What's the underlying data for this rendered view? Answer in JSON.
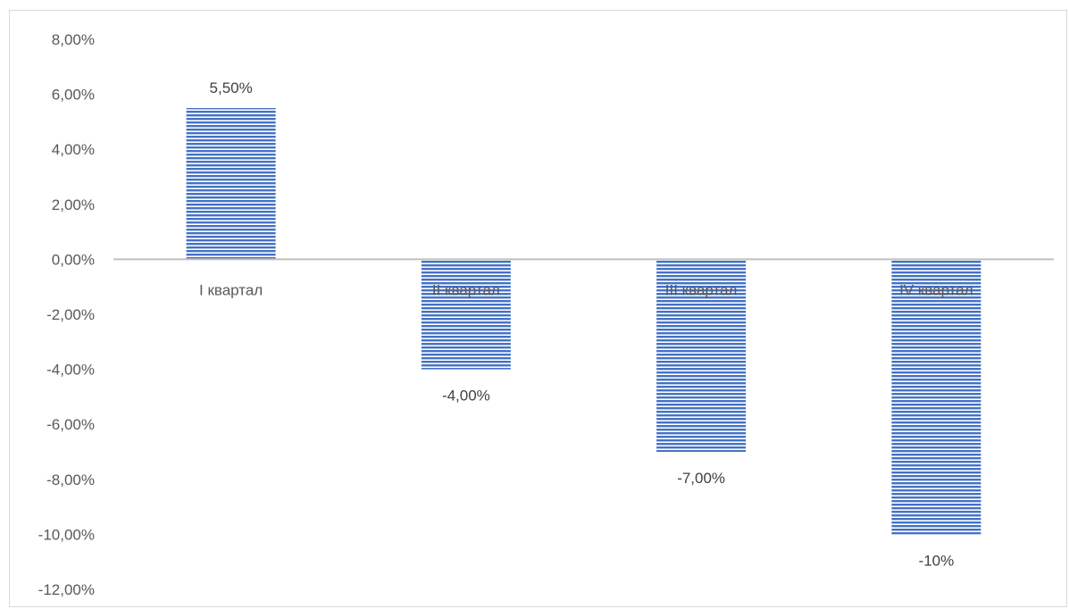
{
  "chart_data": {
    "type": "bar",
    "categories": [
      "I квартал",
      "II квартал",
      "III квартал",
      "IV квартал"
    ],
    "values": [
      5.5,
      -4.0,
      -7.0,
      -10.0
    ],
    "data_labels": [
      "5,50%",
      "-4,00%",
      "-7,00%",
      "-10%"
    ],
    "y_tick_labels": [
      "8,00%",
      "6,00%",
      "4,00%",
      "2,00%",
      "0,00%",
      "-2,00%",
      "-4,00%",
      "-6,00%",
      "-8,00%",
      "-10,00%",
      "-12,00%"
    ],
    "ylim": [
      -12,
      8
    ],
    "title": "",
    "xlabel": "",
    "ylabel": "",
    "grid": false,
    "bar_pattern": "horizontal-stripes",
    "bar_color": "#4472c4",
    "axis_color": "#bfbfbf"
  }
}
